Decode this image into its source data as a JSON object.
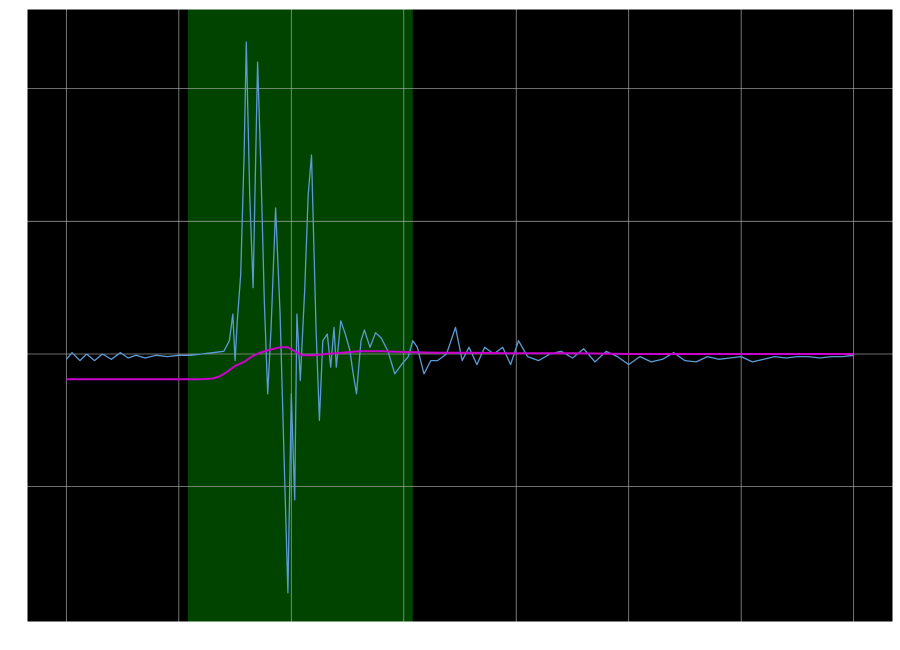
{
  "chart_data": {
    "type": "line",
    "title": "",
    "xlabel": "",
    "ylabel": "",
    "xlim": [
      -0.35,
      7.35
    ],
    "ylim": [
      -2.02,
      2.6
    ],
    "grid": true,
    "x_gridlines": [
      0,
      1,
      2,
      3,
      4,
      5,
      6,
      7
    ],
    "y_gridlines": [
      -1,
      0,
      1,
      2
    ],
    "highlight_span": {
      "x_start": 1.08,
      "x_end": 3.08
    },
    "colors": {
      "plot_background": "#000000",
      "highlight": "#004400",
      "grid": "#aaaaaa",
      "frame": "#ffffff",
      "signal": "#5b9bd5",
      "envelope": "#cc00cc"
    },
    "series": [
      {
        "key": "signal",
        "x": [
          0.0,
          0.05,
          0.12,
          0.18,
          0.25,
          0.32,
          0.4,
          0.48,
          0.55,
          0.62,
          0.7,
          0.8,
          0.9,
          1.0,
          1.1,
          1.2,
          1.3,
          1.4,
          1.45,
          1.48,
          1.5,
          1.52,
          1.55,
          1.58,
          1.6,
          1.63,
          1.66,
          1.7,
          1.73,
          1.76,
          1.79,
          1.82,
          1.86,
          1.9,
          1.93,
          1.97,
          2.0,
          2.03,
          2.05,
          2.08,
          2.12,
          2.15,
          2.18,
          2.22,
          2.25,
          2.28,
          2.32,
          2.35,
          2.38,
          2.4,
          2.44,
          2.48,
          2.52,
          2.55,
          2.58,
          2.62,
          2.65,
          2.7,
          2.75,
          2.8,
          2.86,
          2.92,
          2.98,
          3.04,
          3.08,
          3.12,
          3.18,
          3.24,
          3.3,
          3.38,
          3.46,
          3.52,
          3.58,
          3.65,
          3.72,
          3.8,
          3.88,
          3.95,
          4.02,
          4.1,
          4.2,
          4.3,
          4.4,
          4.5,
          4.6,
          4.7,
          4.8,
          4.9,
          5.0,
          5.1,
          5.2,
          5.3,
          5.4,
          5.5,
          5.6,
          5.7,
          5.8,
          5.9,
          6.0,
          6.1,
          6.2,
          6.3,
          6.4,
          6.5,
          6.6,
          6.7,
          6.8,
          6.9,
          7.0
        ],
        "y": [
          -0.04,
          0.01,
          -0.05,
          0.0,
          -0.05,
          0.0,
          -0.04,
          0.01,
          -0.03,
          -0.01,
          -0.03,
          -0.01,
          -0.02,
          -0.01,
          -0.01,
          0.0,
          0.01,
          0.02,
          0.1,
          0.3,
          -0.05,
          0.25,
          0.6,
          1.5,
          2.35,
          1.2,
          0.5,
          2.2,
          1.4,
          0.4,
          -0.3,
          0.2,
          1.1,
          0.3,
          -0.6,
          -1.8,
          -0.3,
          -1.1,
          0.3,
          -0.2,
          0.5,
          1.2,
          1.5,
          0.2,
          -0.5,
          0.1,
          0.15,
          -0.1,
          0.2,
          -0.1,
          0.25,
          0.15,
          0.03,
          -0.15,
          -0.3,
          0.1,
          0.18,
          0.05,
          0.16,
          0.12,
          0.02,
          -0.15,
          -0.08,
          -0.02,
          0.1,
          0.05,
          -0.15,
          -0.05,
          -0.05,
          0.0,
          0.2,
          -0.05,
          0.05,
          -0.08,
          0.05,
          0.0,
          0.05,
          -0.08,
          0.1,
          -0.02,
          -0.05,
          0.0,
          0.02,
          -0.03,
          0.04,
          -0.06,
          0.02,
          -0.02,
          -0.08,
          -0.02,
          -0.06,
          -0.04,
          0.01,
          -0.05,
          -0.06,
          -0.02,
          -0.04,
          -0.03,
          -0.02,
          -0.06,
          -0.04,
          -0.02,
          -0.03,
          -0.02,
          -0.02,
          -0.03,
          -0.02,
          -0.02,
          -0.01
        ]
      },
      {
        "key": "envelope",
        "x": [
          0.0,
          1.0,
          1.2,
          1.3,
          1.36,
          1.42,
          1.5,
          1.58,
          1.65,
          1.72,
          1.8,
          1.9,
          1.97,
          2.03,
          2.1,
          2.2,
          2.3,
          2.45,
          2.6,
          2.8,
          3.0,
          3.3,
          3.6,
          4.0,
          4.5,
          5.0,
          5.5,
          6.0,
          6.5,
          7.0
        ],
        "y": [
          -0.19,
          -0.19,
          -0.19,
          -0.185,
          -0.17,
          -0.14,
          -0.09,
          -0.06,
          -0.02,
          0.01,
          0.03,
          0.05,
          0.05,
          0.02,
          -0.01,
          -0.01,
          0.0,
          0.01,
          0.02,
          0.02,
          0.015,
          0.01,
          0.01,
          0.005,
          0.005,
          0.0,
          0.0,
          0.0,
          0.0,
          0.0
        ]
      }
    ]
  }
}
